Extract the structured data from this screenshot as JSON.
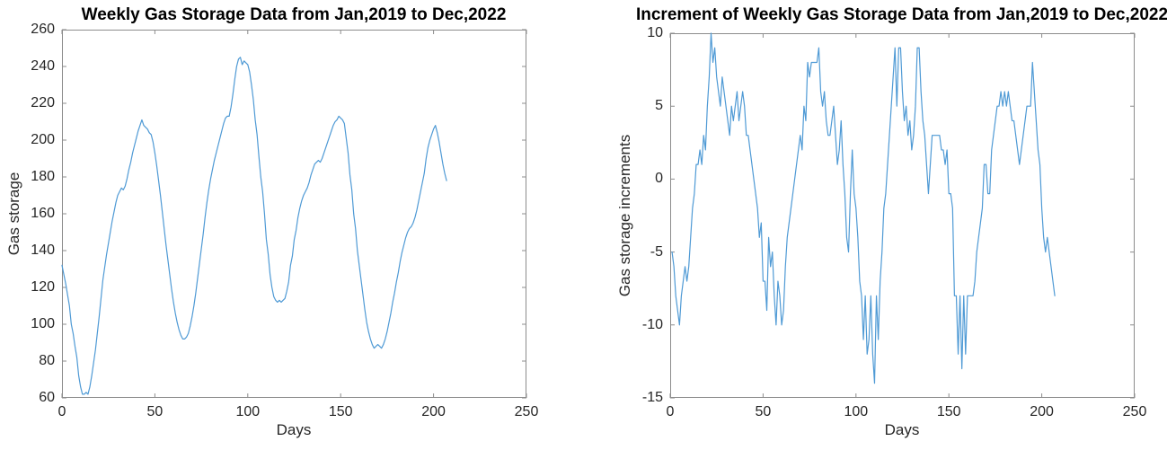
{
  "figure": {
    "background": "#ffffff",
    "axis_color": "#8c8c8c",
    "tick_label_color": "#262626",
    "title_color": "#000000"
  },
  "chart_data": [
    {
      "type": "line",
      "title": "Weekly Gas Storage Data from Jan,2019 to Dec,2022",
      "xlabel": "Days",
      "ylabel": "Gas storage",
      "legend": "none",
      "grid": "off",
      "xlim": [
        0,
        250
      ],
      "ylim": [
        60,
        260
      ],
      "xticks": [
        0,
        50,
        100,
        150,
        200,
        250
      ],
      "yticks": [
        60,
        80,
        100,
        120,
        140,
        160,
        180,
        200,
        220,
        240,
        260
      ],
      "line_color": "#4f9ad5",
      "x_start": 0,
      "x_step": 1,
      "values": [
        132,
        127,
        122,
        116,
        110,
        100,
        95,
        88,
        82,
        72,
        66,
        62,
        62,
        63,
        62,
        66,
        72,
        79,
        86,
        95,
        104,
        114,
        124,
        131,
        138,
        144,
        150,
        156,
        161,
        166,
        170,
        172,
        174,
        173,
        175,
        179,
        184,
        188,
        193,
        197,
        201,
        205,
        208,
        211,
        208,
        207,
        206,
        204,
        203,
        199,
        193,
        186,
        178,
        170,
        161,
        152,
        143,
        135,
        127,
        119,
        112,
        106,
        101,
        97,
        94,
        92,
        92,
        93,
        95,
        99,
        104,
        110,
        117,
        125,
        133,
        141,
        149,
        158,
        166,
        173,
        179,
        184,
        189,
        193,
        197,
        201,
        205,
        209,
        212,
        213,
        213,
        218,
        225,
        233,
        240,
        244,
        245,
        241,
        243,
        242,
        241,
        237,
        230,
        222,
        211,
        203,
        191,
        180,
        172,
        160,
        146,
        138,
        127,
        120,
        115,
        113,
        112,
        113,
        112,
        113,
        114,
        118,
        123,
        132,
        137,
        146,
        151,
        158,
        163,
        167,
        170,
        172,
        174,
        177,
        181,
        184,
        187,
        188,
        189,
        188,
        190,
        193,
        196,
        199,
        202,
        205,
        208,
        210,
        211,
        213,
        212,
        211,
        209,
        201,
        193,
        181,
        173,
        160,
        152,
        140,
        132,
        124,
        116,
        108,
        101,
        96,
        92,
        89,
        87,
        88,
        89,
        88,
        87,
        89,
        92,
        96,
        101,
        106,
        112,
        117,
        123,
        128,
        134,
        139,
        143,
        147,
        150,
        152,
        153,
        155,
        158,
        162,
        167,
        172,
        177,
        182,
        190,
        196,
        200,
        203,
        206,
        208,
        204,
        199,
        193,
        187,
        182,
        178
      ]
    },
    {
      "type": "line",
      "title": "Increment of Weekly Gas Storage Data from Jan,2019 to Dec,2022",
      "xlabel": "Days",
      "ylabel": "Gas storage increments",
      "legend": "none",
      "grid": "off",
      "xlim": [
        0,
        250
      ],
      "ylim": [
        -15,
        10
      ],
      "xticks": [
        0,
        50,
        100,
        150,
        200,
        250
      ],
      "yticks": [
        -15,
        -10,
        -5,
        0,
        5,
        10
      ],
      "line_color": "#4f9ad5",
      "x_start": 1,
      "x_step": 1,
      "values": [
        -5,
        -6,
        -8,
        -9,
        -10,
        -8,
        -7,
        -6,
        -7,
        -6,
        -4,
        -2,
        -1,
        1,
        1,
        2,
        1,
        3,
        2,
        5,
        7,
        10,
        8,
        9,
        7,
        6,
        5,
        7,
        6,
        5,
        4,
        3,
        5,
        4,
        5,
        6,
        4,
        5,
        6,
        5,
        3,
        3,
        2,
        1,
        0,
        -1,
        -2,
        -4,
        -3,
        -7,
        -7,
        -9,
        -4,
        -6,
        -5,
        -8,
        -10,
        -7,
        -8,
        -10,
        -9,
        -6,
        -4,
        -3,
        -2,
        -1,
        0,
        1,
        2,
        3,
        2,
        5,
        4,
        8,
        7,
        8,
        8,
        8,
        8,
        9,
        6,
        5,
        6,
        4,
        3,
        3,
        4,
        5,
        3,
        1,
        2,
        4,
        1,
        -1,
        -4,
        -5,
        -1,
        2,
        -1,
        -2,
        -4,
        -7,
        -8,
        -11,
        -8,
        -12,
        -11,
        -8,
        -12,
        -14,
        -8,
        -11,
        -7,
        -5,
        -2,
        -1,
        1,
        3,
        5,
        7,
        9,
        5,
        9,
        9,
        6,
        4,
        5,
        3,
        4,
        2,
        3,
        5,
        9,
        9,
        6,
        4,
        3,
        1,
        -1,
        1,
        3,
        3,
        3,
        3,
        3,
        2,
        2,
        1,
        2,
        -1,
        -1,
        -2,
        -8,
        -8,
        -12,
        -8,
        -13,
        -8,
        -12,
        -8,
        -8,
        -8,
        -8,
        -7,
        -5,
        -4,
        -3,
        -2,
        1,
        1,
        -1,
        -1,
        2,
        3,
        4,
        5,
        5,
        6,
        5,
        6,
        5,
        6,
        5,
        4,
        4,
        3,
        2,
        1,
        2,
        3,
        4,
        5,
        5,
        5,
        8,
        6,
        4,
        2,
        1,
        -2,
        -4,
        -5,
        -4,
        -5,
        -6,
        -7,
        -8
      ]
    }
  ]
}
